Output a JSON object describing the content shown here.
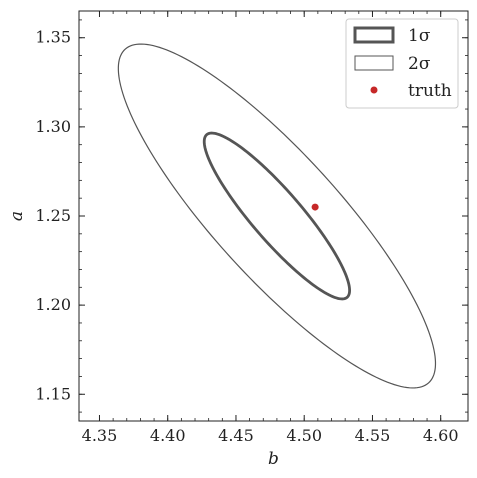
{
  "chart_data": {
    "type": "scatter",
    "xlabel": "b",
    "ylabel": "a",
    "xlim": [
      4.335,
      4.62
    ],
    "ylim": [
      1.135,
      1.365
    ],
    "xticks": [
      "4.35",
      "4.40",
      "4.45",
      "4.50",
      "4.55",
      "4.60"
    ],
    "yticks": [
      "1.15",
      "1.20",
      "1.25",
      "1.30",
      "1.35"
    ],
    "grid": false,
    "legend_position": "top-right",
    "legend": [
      "1σ",
      "2σ",
      "truth"
    ],
    "ellipses": [
      {
        "name": "1σ",
        "center": [
          4.48,
          1.25
        ],
        "extent": "b≈4.425–4.535, a≈1.199–1.301",
        "color": "#555555"
      },
      {
        "name": "2σ",
        "center": [
          4.48,
          1.25
        ],
        "extent": "b≈4.362–4.603, a≈1.149–1.352",
        "color": "#555555"
      }
    ],
    "truth": {
      "x": 4.508,
      "y": 1.255,
      "color": "#c62828"
    }
  }
}
